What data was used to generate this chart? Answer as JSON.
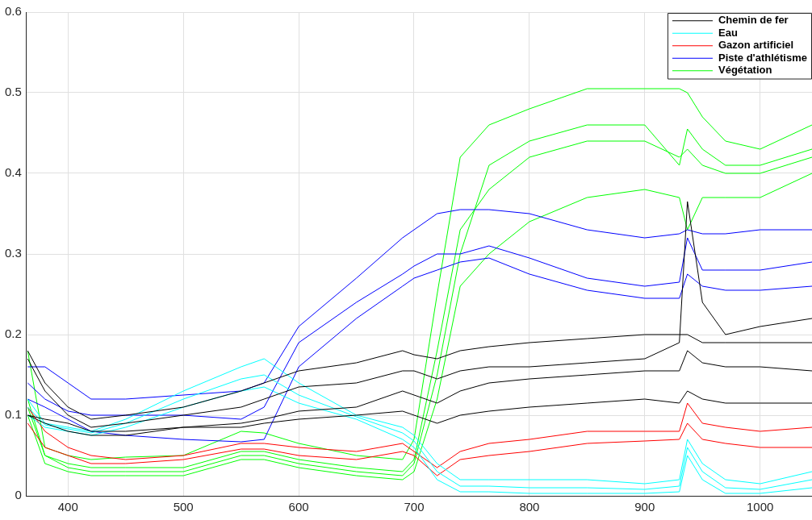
{
  "chart_data": {
    "type": "line",
    "legend": "top right",
    "grid": true,
    "marker": "none",
    "line_style": "solid",
    "x": [
      365,
      380,
      400,
      420,
      450,
      500,
      550,
      570,
      600,
      650,
      690,
      700,
      720,
      740,
      765,
      800,
      850,
      900,
      930,
      937,
      950,
      970,
      1000,
      1045
    ],
    "xlim": [
      364,
      1045
    ],
    "xticks": [
      400,
      500,
      600,
      700,
      800,
      900,
      1000
    ],
    "ylim": [
      0,
      0.6
    ],
    "yticks": [
      0,
      0.1,
      0.2,
      0.3,
      0.4,
      0.5,
      0.6
    ],
    "series": [
      {
        "name": "Chemin de fer",
        "color": "#000000",
        "values": [
          0.18,
          0.14,
          0.11,
          0.095,
          0.1,
          0.11,
          0.13,
          0.14,
          0.155,
          0.165,
          0.18,
          0.175,
          0.17,
          0.18,
          0.185,
          0.19,
          0.195,
          0.2,
          0.2,
          0.2,
          0.19,
          0.19,
          0.19,
          0.19
        ]
      },
      {
        "color": "#000000",
        "values": [
          0.17,
          0.13,
          0.1,
          0.085,
          0.09,
          0.1,
          0.11,
          0.12,
          0.135,
          0.14,
          0.155,
          0.155,
          0.145,
          0.155,
          0.16,
          0.16,
          0.165,
          0.17,
          0.19,
          0.365,
          0.24,
          0.2,
          0.21,
          0.22
        ]
      },
      {
        "color": "#000000",
        "values": [
          0.1,
          0.09,
          0.08,
          0.075,
          0.075,
          0.085,
          0.09,
          0.095,
          0.105,
          0.11,
          0.13,
          0.125,
          0.115,
          0.13,
          0.14,
          0.145,
          0.15,
          0.155,
          0.155,
          0.18,
          0.165,
          0.16,
          0.16,
          0.155
        ]
      },
      {
        "color": "#000000",
        "values": [
          0.1,
          0.095,
          0.09,
          0.08,
          0.08,
          0.085,
          0.085,
          0.09,
          0.095,
          0.1,
          0.105,
          0.1,
          0.09,
          0.1,
          0.105,
          0.11,
          0.115,
          0.12,
          0.115,
          0.13,
          0.12,
          0.115,
          0.115,
          0.115
        ]
      },
      {
        "name": "Eau",
        "color": "#00ffff",
        "values": [
          0.12,
          0.09,
          0.085,
          0.08,
          0.095,
          0.13,
          0.16,
          0.17,
          0.14,
          0.1,
          0.085,
          0.075,
          0.04,
          0.02,
          0.02,
          0.02,
          0.02,
          0.015,
          0.02,
          0.07,
          0.04,
          0.02,
          0.015,
          0.03
        ]
      },
      {
        "color": "#00ffff",
        "values": [
          0.11,
          0.088,
          0.083,
          0.078,
          0.09,
          0.12,
          0.145,
          0.15,
          0.125,
          0.098,
          0.078,
          0.068,
          0.03,
          0.012,
          0.012,
          0.01,
          0.01,
          0.008,
          0.012,
          0.06,
          0.03,
          0.01,
          0.008,
          0.02
        ]
      },
      {
        "color": "#00ffff",
        "values": [
          0.1,
          0.085,
          0.08,
          0.075,
          0.085,
          0.11,
          0.13,
          0.135,
          0.115,
          0.095,
          0.07,
          0.06,
          0.02,
          0.005,
          0.005,
          0.003,
          0.003,
          0.003,
          0.005,
          0.05,
          0.02,
          0.003,
          0.003,
          0.01
        ]
      },
      {
        "name": "Gazon artificiel",
        "color": "#ff0000",
        "values": [
          0.11,
          0.08,
          0.06,
          0.05,
          0.045,
          0.05,
          0.065,
          0.065,
          0.06,
          0.055,
          0.065,
          0.055,
          0.035,
          0.055,
          0.065,
          0.07,
          0.08,
          0.08,
          0.08,
          0.115,
          0.09,
          0.085,
          0.08,
          0.085
        ]
      },
      {
        "color": "#ff0000",
        "values": [
          0.09,
          0.06,
          0.05,
          0.04,
          0.04,
          0.045,
          0.058,
          0.058,
          0.05,
          0.045,
          0.055,
          0.05,
          0.025,
          0.045,
          0.05,
          0.055,
          0.065,
          0.068,
          0.07,
          0.09,
          0.07,
          0.065,
          0.06,
          0.06
        ]
      },
      {
        "name": "Piste d'athlétisme",
        "color": "#0000ff",
        "values": [
          0.16,
          0.16,
          0.14,
          0.12,
          0.12,
          0.125,
          0.13,
          0.14,
          0.21,
          0.27,
          0.32,
          0.33,
          0.35,
          0.355,
          0.355,
          0.35,
          0.33,
          0.32,
          0.325,
          0.33,
          0.325,
          0.325,
          0.33,
          0.33
        ]
      },
      {
        "color": "#0000ff",
        "values": [
          0.14,
          0.12,
          0.105,
          0.1,
          0.1,
          0.1,
          0.095,
          0.11,
          0.19,
          0.24,
          0.275,
          0.285,
          0.3,
          0.3,
          0.31,
          0.295,
          0.27,
          0.26,
          0.265,
          0.32,
          0.28,
          0.28,
          0.28,
          0.29
        ]
      },
      {
        "color": "#0000ff",
        "values": [
          0.12,
          0.11,
          0.095,
          0.08,
          0.075,
          0.07,
          0.067,
          0.07,
          0.16,
          0.22,
          0.26,
          0.27,
          0.28,
          0.29,
          0.295,
          0.275,
          0.255,
          0.245,
          0.245,
          0.275,
          0.26,
          0.255,
          0.255,
          0.26
        ]
      },
      {
        "name": "Végétation",
        "color": "#00ff00",
        "values": [
          0.18,
          0.06,
          0.05,
          0.045,
          0.048,
          0.05,
          0.08,
          0.078,
          0.065,
          0.05,
          0.045,
          0.07,
          0.25,
          0.42,
          0.46,
          0.48,
          0.505,
          0.505,
          0.505,
          0.5,
          0.47,
          0.44,
          0.43,
          0.46
        ]
      },
      {
        "color": "#00ff00",
        "values": [
          0.11,
          0.05,
          0.035,
          0.03,
          0.03,
          0.03,
          0.05,
          0.05,
          0.04,
          0.03,
          0.025,
          0.04,
          0.15,
          0.3,
          0.41,
          0.44,
          0.46,
          0.46,
          0.41,
          0.455,
          0.43,
          0.41,
          0.41,
          0.43
        ]
      },
      {
        "color": "#00ff00",
        "values": [
          0.12,
          0.05,
          0.04,
          0.035,
          0.035,
          0.035,
          0.055,
          0.055,
          0.045,
          0.035,
          0.03,
          0.045,
          0.18,
          0.33,
          0.38,
          0.42,
          0.44,
          0.44,
          0.42,
          0.43,
          0.41,
          0.4,
          0.4,
          0.42
        ]
      },
      {
        "color": "#00ff00",
        "values": [
          0.1,
          0.04,
          0.03,
          0.025,
          0.025,
          0.025,
          0.045,
          0.045,
          0.035,
          0.025,
          0.02,
          0.03,
          0.12,
          0.26,
          0.3,
          0.34,
          0.37,
          0.38,
          0.37,
          0.33,
          0.37,
          0.37,
          0.37,
          0.4
        ]
      }
    ]
  }
}
